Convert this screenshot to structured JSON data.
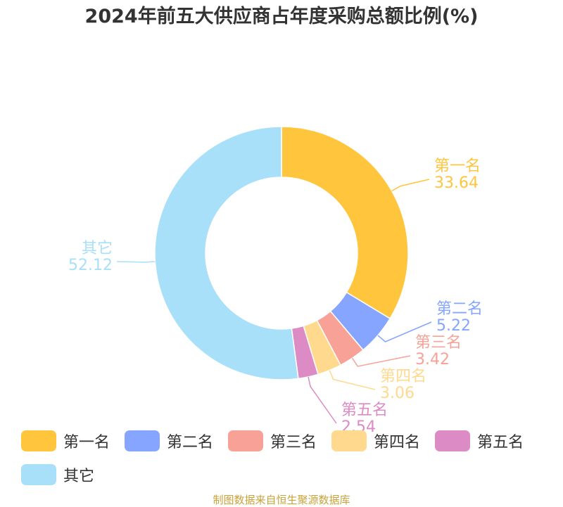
{
  "chart_data": {
    "type": "pie",
    "title": "2024年前五大供应商占年度采购总额比例(%)",
    "donut": true,
    "categories": [
      "第一名",
      "第二名",
      "第三名",
      "第四名",
      "第五名",
      "其它"
    ],
    "values": [
      33.64,
      5.22,
      3.42,
      3.06,
      2.54,
      52.12
    ],
    "colors": [
      "#ffc53d",
      "#85a5ff",
      "#f8a197",
      "#ffd98e",
      "#dc8bc4",
      "#a8dff9"
    ],
    "legend_position": "bottom"
  },
  "footer": {
    "source": "制图数据来自恒生聚源数据库"
  }
}
